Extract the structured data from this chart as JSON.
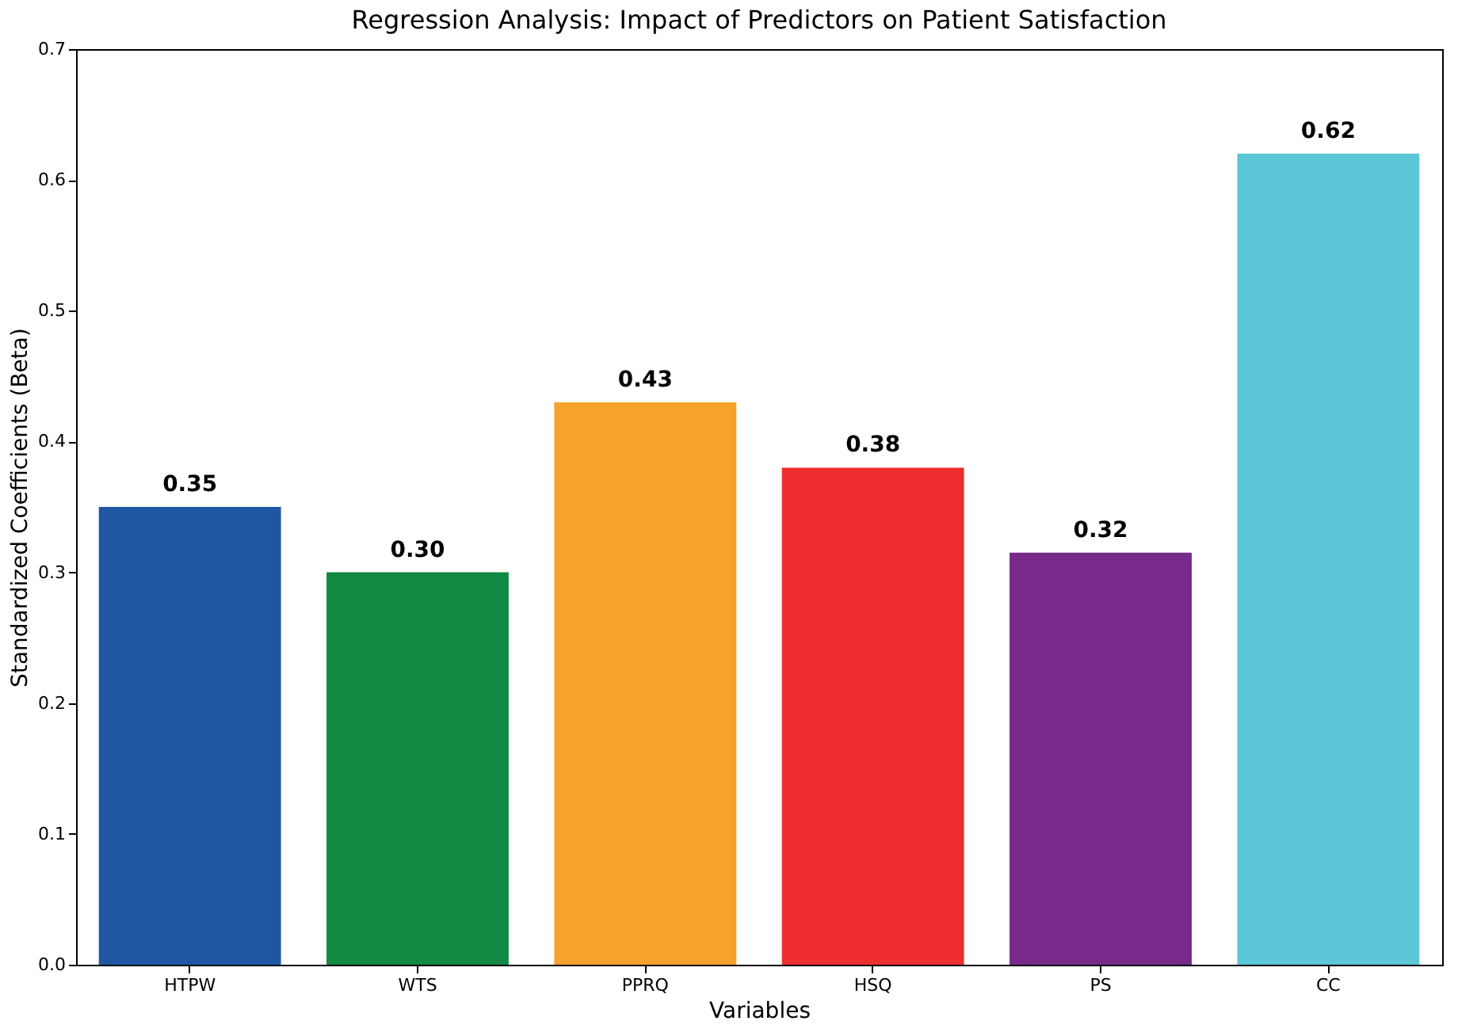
{
  "chart_data": {
    "type": "bar",
    "title": "Regression Analysis: Impact of Predictors on Patient Satisfaction",
    "xlabel": "Variables",
    "ylabel": "Standardized Coefficients (Beta)",
    "categories": [
      "HTPW",
      "WTS",
      "PPRQ",
      "HSQ",
      "PS",
      "CC"
    ],
    "values": [
      0.35,
      0.3,
      0.43,
      0.38,
      0.315,
      0.62
    ],
    "value_labels": [
      "0.35",
      "0.30",
      "0.43",
      "0.38",
      "0.32",
      "0.62"
    ],
    "colors": [
      "#1f57a5",
      "#138842",
      "#f7a22c",
      "#ee2e2e",
      "#772a8a",
      "#5bc7d6"
    ],
    "ylim": [
      0,
      0.7
    ],
    "yticks": [
      {
        "value": 0,
        "label": "0.0"
      },
      0.1,
      0.2,
      0.3,
      0.4,
      0.5,
      0.6,
      0.7
    ],
    "grid": false,
    "legend": false
  }
}
